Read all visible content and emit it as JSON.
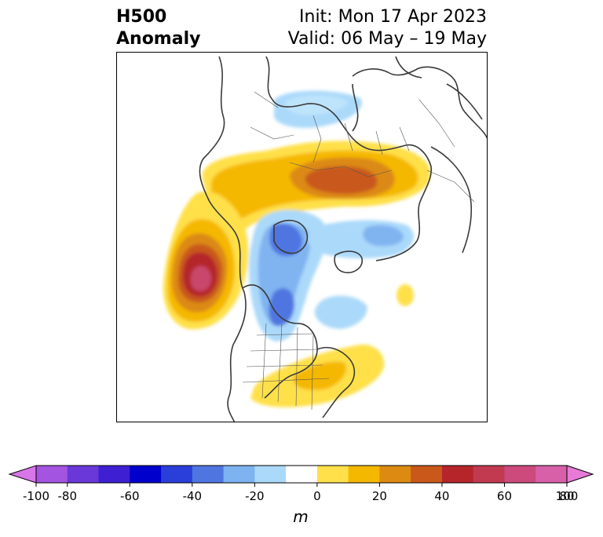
{
  "header": {
    "title_line1": "H500",
    "title_line2": "Anomaly",
    "init_text": "Init: Mon 17 Apr 2023",
    "valid_text": "Valid: 06 May – 19 May"
  },
  "map": {
    "features": [
      {
        "name": "siberia-negative",
        "level": -20,
        "color": "#abd9fa"
      },
      {
        "name": "eurasia-positive-band",
        "level": 20,
        "color": "#f5b800"
      },
      {
        "name": "russia-positive-core",
        "level": 40,
        "color": "#c4501a"
      },
      {
        "name": "gulf-of-alaska-positive",
        "level": 60,
        "color": "#b7252a"
      },
      {
        "name": "gulf-of-alaska-peak",
        "level": 80,
        "color": "#c9466a"
      },
      {
        "name": "canada-negative",
        "level": -40,
        "color": "#4f76e0"
      },
      {
        "name": "north-atlantic-negative",
        "level": -20,
        "color": "#80b4f0"
      },
      {
        "name": "atlantic-small-positive",
        "level": 10,
        "color": "#ffe04a"
      },
      {
        "name": "us-southeast-positive",
        "level": 20,
        "color": "#f5b800"
      }
    ]
  },
  "colorbar": {
    "ticks": [
      "-100",
      "-80",
      "-60",
      "-40",
      "-20",
      "0",
      "20",
      "40",
      "60",
      "80",
      "100"
    ],
    "unit": "m",
    "colors": [
      "#d875e8",
      "#a354e0",
      "#6a38d8",
      "#3e1fd1",
      "#0000cc",
      "#2a3fd9",
      "#4f76e0",
      "#7db3f0",
      "#abd9fa",
      "#ffffff",
      "#ffe04a",
      "#f5b800",
      "#dc8a12",
      "#c9581a",
      "#b5252a",
      "#c23a50",
      "#cc4a7c",
      "#d860a8",
      "#e67ad6"
    ]
  }
}
